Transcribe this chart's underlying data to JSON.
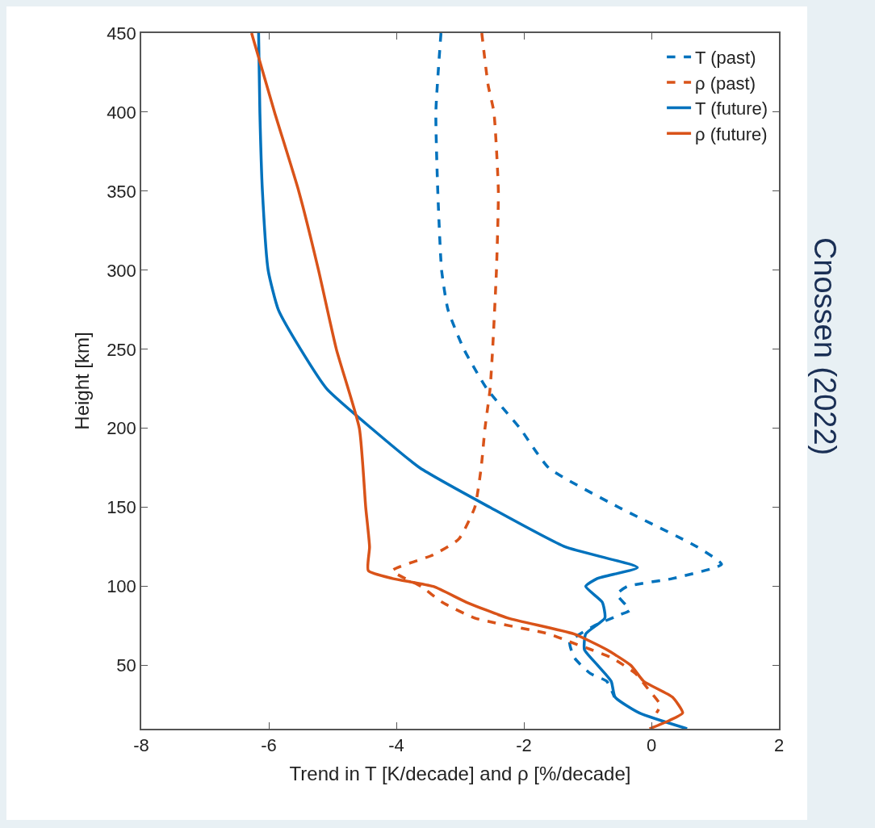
{
  "chart_data": {
    "type": "line",
    "xlabel": "Trend in T [K/decade] and ρ [%/decade]",
    "ylabel": "Height [km]",
    "xlim": [
      -8,
      2
    ],
    "xticks": [
      -8,
      -6,
      -4,
      -2,
      0,
      2
    ],
    "ylim": [
      10,
      450
    ],
    "yticks": [
      50,
      100,
      150,
      200,
      250,
      300,
      350,
      400,
      450
    ],
    "legend": "top right",
    "marker": "none",
    "annotations": [
      "Cnossen (2022)"
    ],
    "series": [
      {
        "name": "T (past)",
        "color": "#0072bd",
        "line_style": "dashed",
        "x": [
          -3.3,
          -3.38,
          -3.35,
          -3.29,
          -3.19,
          -2.94,
          -2.58,
          -2.06,
          -1.61,
          -0.51,
          0.72,
          1.1,
          0.33,
          -0.38,
          -0.54,
          -0.34,
          -0.5,
          -0.9,
          -1.28,
          -1.21,
          -0.96,
          -0.7,
          -0.58
        ],
        "values": [
          450,
          400,
          350,
          300,
          275,
          250,
          225,
          200,
          175,
          150,
          125,
          114,
          105,
          100,
          95,
          85,
          82,
          75,
          65,
          55,
          45,
          40,
          30
        ]
      },
      {
        "name": "ρ (past)",
        "color": "#d95319",
        "line_style": "dashed",
        "x": [
          -2.66,
          -2.56,
          -2.47,
          -2.4,
          -2.43,
          -2.49,
          -2.53,
          -2.61,
          -2.67,
          -2.77,
          -3.02,
          -3.42,
          -4.06,
          -3.61,
          -3.28,
          -2.77,
          -1.61,
          -1.28,
          -0.63,
          -0.25,
          -0.05,
          0.14,
          0.08
        ],
        "values": [
          450,
          417,
          400,
          350,
          300,
          250,
          225,
          200,
          175,
          150,
          130,
          120,
          110,
          100,
          90,
          80,
          70,
          65,
          55,
          45,
          35,
          25,
          20
        ]
      },
      {
        "name": "T (future)",
        "color": "#0072bd",
        "line_style": "solid",
        "x": [
          -6.16,
          -6.14,
          -6.1,
          -6.01,
          -5.85,
          -5.5,
          -5.09,
          -4.39,
          -3.63,
          -2.53,
          -1.35,
          -0.22,
          -0.85,
          -1.03,
          -0.77,
          -0.73,
          -1.03,
          -1.05,
          -0.84,
          -0.63,
          -0.57,
          -0.19,
          0.56
        ],
        "values": [
          450,
          400,
          350,
          300,
          275,
          250,
          225,
          200,
          175,
          150,
          125,
          112,
          105,
          100,
          90,
          80,
          70,
          60,
          50,
          40,
          30,
          20,
          10
        ]
      },
      {
        "name": "ρ (future)",
        "color": "#d95319",
        "line_style": "solid",
        "x": [
          -6.27,
          -5.91,
          -5.53,
          -5.22,
          -4.94,
          -4.58,
          -4.48,
          -4.42,
          -4.44,
          -4.06,
          -3.42,
          -2.9,
          -2.25,
          -1.22,
          -0.7,
          -0.32,
          -0.12,
          0.33,
          0.49,
          0.27,
          -0.03
        ],
        "values": [
          450,
          400,
          350,
          300,
          250,
          200,
          150,
          125,
          110,
          105,
          100,
          90,
          80,
          70,
          60,
          50,
          40,
          30,
          20,
          15,
          10
        ]
      }
    ]
  }
}
